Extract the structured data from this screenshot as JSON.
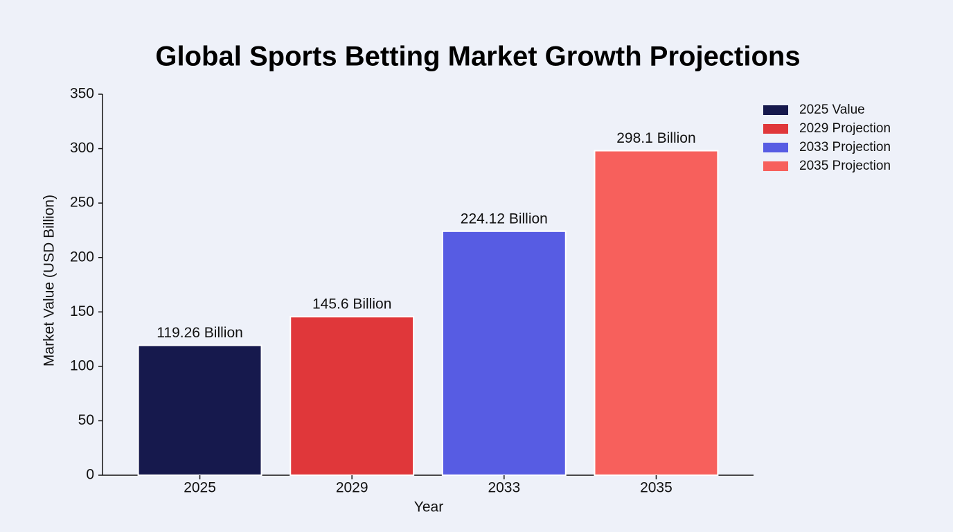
{
  "chart_data": {
    "type": "bar",
    "title": "Global Sports Betting Market Growth Projections",
    "x_label": "Year",
    "y_label": "Market Value (USD Billion)",
    "categories": [
      "2025",
      "2029",
      "2033",
      "2035"
    ],
    "values": [
      119.26,
      145.6,
      224.12,
      298.1
    ],
    "value_labels": [
      "119.26 Billion",
      "145.6 Billion",
      "224.12 Billion",
      "298.1 Billion"
    ],
    "colors": [
      "#16194d",
      "#e0373a",
      "#575ce3",
      "#f7605c"
    ],
    "legend": [
      "2025 Value",
      "2029 Projection",
      "2033 Projection",
      "2035 Projection"
    ],
    "legend_position": "upper right",
    "ylim": [
      0,
      350
    ],
    "yticks": [
      0,
      50,
      100,
      150,
      200,
      250,
      300,
      350
    ],
    "grid": false
  }
}
